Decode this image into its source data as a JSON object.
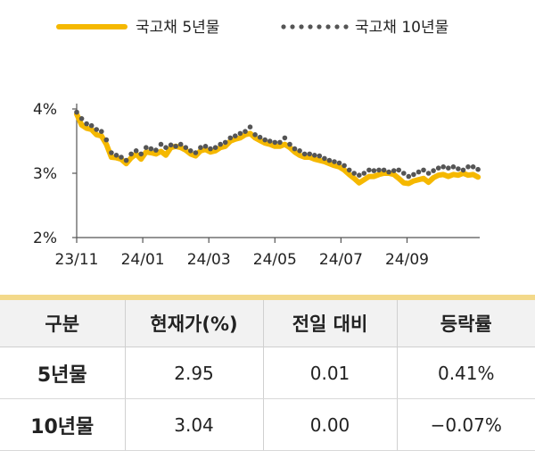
{
  "colors": {
    "series_5y": "#f5b800",
    "series_10y": "#555555",
    "axis": "#555555",
    "header_bg": "#f2f2f2",
    "accent_rule": "#f3d98a"
  },
  "chart_data": {
    "type": "line",
    "legend": [
      "국고채 5년물",
      "국고채 10년물"
    ],
    "y_tick_labels": [
      "2%",
      "3%",
      "4%"
    ],
    "y_ticks": [
      2,
      3,
      4
    ],
    "ylim": [
      2,
      4
    ],
    "x_tick_labels": [
      "23/11",
      "24/01",
      "24/03",
      "24/05",
      "24/07",
      "24/09"
    ],
    "x_ticks": [
      0,
      2,
      4,
      6,
      8,
      10
    ],
    "xlim": [
      0,
      12.2
    ],
    "series": [
      {
        "name": "국고채 5년물",
        "style": "solid",
        "x": [
          0,
          0.15,
          0.3,
          0.45,
          0.6,
          0.75,
          0.9,
          1.05,
          1.2,
          1.35,
          1.5,
          1.65,
          1.8,
          1.95,
          2.1,
          2.25,
          2.4,
          2.55,
          2.7,
          2.85,
          3.0,
          3.15,
          3.3,
          3.45,
          3.6,
          3.75,
          3.9,
          4.05,
          4.2,
          4.35,
          4.5,
          4.65,
          4.8,
          4.95,
          5.1,
          5.25,
          5.4,
          5.55,
          5.7,
          5.85,
          6.0,
          6.15,
          6.3,
          6.45,
          6.6,
          6.75,
          6.9,
          7.05,
          7.2,
          7.35,
          7.5,
          7.65,
          7.8,
          7.95,
          8.1,
          8.25,
          8.4,
          8.55,
          8.7,
          8.85,
          9.0,
          9.15,
          9.3,
          9.45,
          9.6,
          9.75,
          9.9,
          10.05,
          10.2,
          10.35,
          10.5,
          10.65,
          10.8,
          10.95,
          11.1,
          11.25,
          11.4,
          11.55,
          11.7,
          11.85,
          12.0,
          12.15
        ],
        "values": [
          3.92,
          3.75,
          3.7,
          3.68,
          3.6,
          3.58,
          3.45,
          3.25,
          3.24,
          3.22,
          3.15,
          3.24,
          3.3,
          3.22,
          3.33,
          3.32,
          3.3,
          3.34,
          3.28,
          3.4,
          3.42,
          3.4,
          3.36,
          3.3,
          3.27,
          3.35,
          3.37,
          3.33,
          3.35,
          3.4,
          3.42,
          3.5,
          3.53,
          3.55,
          3.6,
          3.62,
          3.55,
          3.51,
          3.47,
          3.45,
          3.42,
          3.42,
          3.45,
          3.4,
          3.33,
          3.28,
          3.25,
          3.25,
          3.22,
          3.2,
          3.18,
          3.15,
          3.12,
          3.1,
          3.05,
          2.98,
          2.92,
          2.85,
          2.9,
          2.95,
          2.95,
          2.98,
          3.0,
          3.0,
          2.98,
          2.92,
          2.85,
          2.84,
          2.88,
          2.9,
          2.92,
          2.86,
          2.93,
          2.97,
          2.98,
          2.95,
          2.98,
          2.97,
          3.0,
          2.97,
          2.98,
          2.94
        ]
      },
      {
        "name": "국고채 10년물",
        "style": "dotted",
        "x": [
          0,
          0.15,
          0.3,
          0.45,
          0.6,
          0.75,
          0.9,
          1.05,
          1.2,
          1.35,
          1.5,
          1.65,
          1.8,
          1.95,
          2.1,
          2.25,
          2.4,
          2.55,
          2.7,
          2.85,
          3.0,
          3.15,
          3.3,
          3.45,
          3.6,
          3.75,
          3.9,
          4.05,
          4.2,
          4.35,
          4.5,
          4.65,
          4.8,
          4.95,
          5.1,
          5.25,
          5.4,
          5.55,
          5.7,
          5.85,
          6.0,
          6.15,
          6.3,
          6.45,
          6.6,
          6.75,
          6.9,
          7.05,
          7.2,
          7.35,
          7.5,
          7.65,
          7.8,
          7.95,
          8.1,
          8.25,
          8.4,
          8.55,
          8.7,
          8.85,
          9.0,
          9.15,
          9.3,
          9.45,
          9.6,
          9.75,
          9.9,
          10.05,
          10.2,
          10.35,
          10.5,
          10.65,
          10.8,
          10.95,
          11.1,
          11.25,
          11.4,
          11.55,
          11.7,
          11.85,
          12.0,
          12.15
        ],
        "values": [
          3.95,
          3.85,
          3.77,
          3.74,
          3.68,
          3.65,
          3.52,
          3.32,
          3.28,
          3.25,
          3.2,
          3.3,
          3.35,
          3.3,
          3.4,
          3.38,
          3.36,
          3.45,
          3.4,
          3.44,
          3.42,
          3.45,
          3.4,
          3.35,
          3.32,
          3.4,
          3.42,
          3.38,
          3.4,
          3.45,
          3.48,
          3.55,
          3.58,
          3.62,
          3.65,
          3.72,
          3.6,
          3.56,
          3.52,
          3.5,
          3.48,
          3.48,
          3.55,
          3.45,
          3.38,
          3.35,
          3.3,
          3.3,
          3.28,
          3.27,
          3.23,
          3.2,
          3.18,
          3.16,
          3.12,
          3.05,
          3.0,
          2.97,
          3.0,
          3.05,
          3.04,
          3.05,
          3.05,
          3.02,
          3.04,
          3.05,
          3.0,
          2.95,
          2.98,
          3.02,
          3.05,
          3.0,
          3.04,
          3.08,
          3.1,
          3.08,
          3.1,
          3.07,
          3.05,
          3.1,
          3.1,
          3.06
        ]
      }
    ]
  },
  "table": {
    "headers": [
      "구분",
      "현재가(%)",
      "전일 대비",
      "등락률"
    ],
    "rows": [
      {
        "label": "5년물",
        "price": "2.95",
        "change": "0.01",
        "rate": "0.41%"
      },
      {
        "label": "10년물",
        "price": "3.04",
        "change": "0.00",
        "rate": "−0.07%"
      }
    ]
  }
}
